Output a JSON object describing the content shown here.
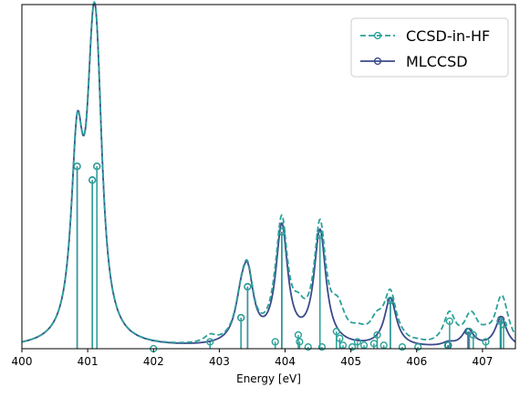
{
  "chart_data": {
    "type": "line",
    "title": "",
    "xlabel": "Energy [eV]",
    "ylabel": "",
    "xlim": [
      400,
      407.5
    ],
    "ylim": [
      0,
      1.0
    ],
    "xticks": [
      "400",
      "401",
      "402",
      "403",
      "404",
      "405",
      "406",
      "407"
    ],
    "yticks": [],
    "grid": false,
    "legend_position": "top-right",
    "broadening_width_ev": 0.11,
    "series": [
      {
        "name": "CCSD-in-HF",
        "color": "#2aa198",
        "line_style": "dashed",
        "marker": "open-circle",
        "peaks": [
          {
            "x": 400.84,
            "y": 0.53
          },
          {
            "x": 401.07,
            "y": 0.49
          },
          {
            "x": 401.14,
            "y": 0.53
          },
          {
            "x": 402.0,
            "y": 0.0
          },
          {
            "x": 402.86,
            "y": 0.02
          },
          {
            "x": 403.33,
            "y": 0.09
          },
          {
            "x": 403.43,
            "y": 0.18
          },
          {
            "x": 403.85,
            "y": 0.02
          },
          {
            "x": 403.95,
            "y": 0.34
          },
          {
            "x": 404.2,
            "y": 0.04
          },
          {
            "x": 404.22,
            "y": 0.02
          },
          {
            "x": 404.35,
            "y": 0.005
          },
          {
            "x": 404.53,
            "y": 0.33
          },
          {
            "x": 404.56,
            "y": 0.005
          },
          {
            "x": 404.78,
            "y": 0.05
          },
          {
            "x": 404.83,
            "y": 0.03
          },
          {
            "x": 404.88,
            "y": 0.01
          },
          {
            "x": 405.02,
            "y": 0.005
          },
          {
            "x": 405.1,
            "y": 0.02
          },
          {
            "x": 405.2,
            "y": 0.01
          },
          {
            "x": 405.35,
            "y": 0.015
          },
          {
            "x": 405.4,
            "y": 0.04
          },
          {
            "x": 405.5,
            "y": 0.01
          },
          {
            "x": 405.6,
            "y": 0.14
          },
          {
            "x": 405.78,
            "y": 0.005
          },
          {
            "x": 406.02,
            "y": 0.005
          },
          {
            "x": 406.47,
            "y": 0.01
          },
          {
            "x": 406.5,
            "y": 0.08
          },
          {
            "x": 406.8,
            "y": 0.05
          },
          {
            "x": 406.86,
            "y": 0.04
          },
          {
            "x": 407.05,
            "y": 0.02
          },
          {
            "x": 407.27,
            "y": 0.08
          },
          {
            "x": 407.32,
            "y": 0.07
          }
        ]
      },
      {
        "name": "MLCCSD",
        "color": "#3b4a8a",
        "line_style": "solid",
        "marker": "open-circle",
        "peaks": [
          {
            "x": 400.84,
            "y": 0.53
          },
          {
            "x": 401.07,
            "y": 0.49
          },
          {
            "x": 401.14,
            "y": 0.53
          },
          {
            "x": 403.33,
            "y": 0.09
          },
          {
            "x": 403.43,
            "y": 0.18
          },
          {
            "x": 403.95,
            "y": 0.34
          },
          {
            "x": 404.53,
            "y": 0.33
          },
          {
            "x": 405.6,
            "y": 0.14
          },
          {
            "x": 406.48,
            "y": 0.01
          },
          {
            "x": 406.78,
            "y": 0.05
          },
          {
            "x": 407.28,
            "y": 0.085
          }
        ]
      }
    ]
  }
}
